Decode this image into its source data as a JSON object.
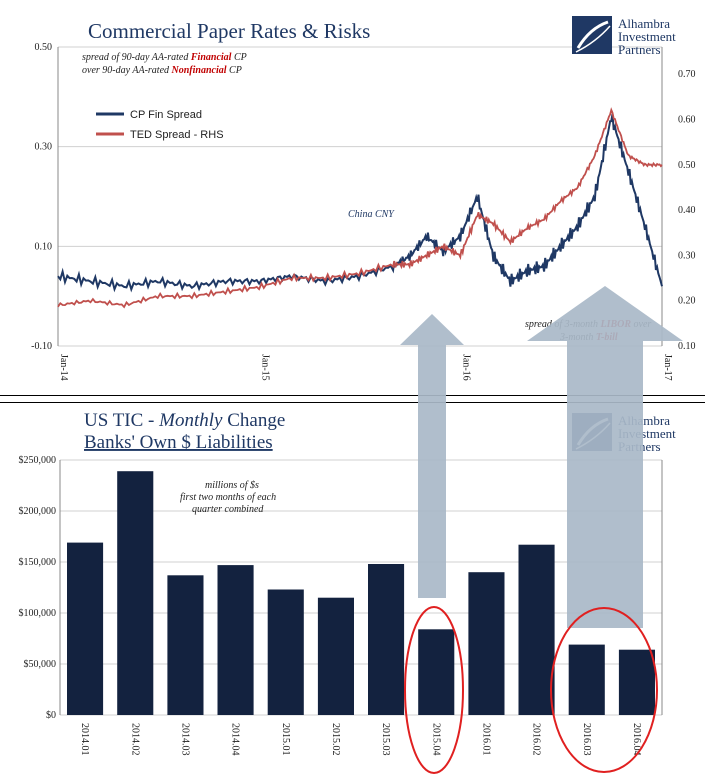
{
  "logo": {
    "lines": [
      "Alhambra",
      "Investment",
      "Partners"
    ],
    "color": "#1f3864"
  },
  "chart_data": [
    {
      "type": "line",
      "title": "Commercial Paper Rates & Risks",
      "subtitle_parts": {
        "line1_pre": "spread of 90-day AA-rated ",
        "line1_red": "Financial",
        "line1_post": " CP",
        "line2_pre": "over 90-day AA-rated ",
        "line2_red": "Nonfinancial",
        "line2_post": " CP"
      },
      "x_tick_labels": [
        "Jan-14",
        "Jan-15",
        "Jan-16",
        "Jan-17"
      ],
      "y_left": {
        "ticks": [
          "-0.10",
          "0.10",
          "0.30",
          "0.50"
        ],
        "ylim": [
          -0.1,
          0.5
        ]
      },
      "y_right": {
        "ticks": [
          "0.10",
          "0.20",
          "0.30",
          "0.40",
          "0.50",
          "0.60",
          "0.70"
        ],
        "ylim": [
          0.1,
          0.76
        ]
      },
      "series": [
        {
          "name": "CP Fin Spread",
          "axis": "left",
          "color": "#1f3864",
          "points": [
            [
              "2014-01",
              0.04
            ],
            [
              "2014-03",
              0.03
            ],
            [
              "2014-05",
              0.02
            ],
            [
              "2014-07",
              0.03
            ],
            [
              "2014-09",
              0.02
            ],
            [
              "2014-11",
              0.03
            ],
            [
              "2015-01",
              0.03
            ],
            [
              "2015-03",
              0.04
            ],
            [
              "2015-05",
              0.03
            ],
            [
              "2015-07",
              0.04
            ],
            [
              "2015-09",
              0.06
            ],
            [
              "2015-10",
              0.08
            ],
            [
              "2015-11",
              0.12
            ],
            [
              "2015-12",
              0.09
            ],
            [
              "2016-01",
              0.12
            ],
            [
              "2016-02",
              0.2
            ],
            [
              "2016-03",
              0.08
            ],
            [
              "2016-04",
              0.03
            ],
            [
              "2016-05",
              0.05
            ],
            [
              "2016-06",
              0.06
            ],
            [
              "2016-07",
              0.1
            ],
            [
              "2016-08",
              0.14
            ],
            [
              "2016-09",
              0.2
            ],
            [
              "2016-10",
              0.36
            ],
            [
              "2016-11",
              0.25
            ],
            [
              "2016-12",
              0.14
            ],
            [
              "2017-01",
              0.02
            ]
          ]
        },
        {
          "name": "TED Spread - RHS",
          "axis": "right",
          "color": "#c0504d",
          "points": [
            [
              "2014-01",
              0.19
            ],
            [
              "2014-03",
              0.2
            ],
            [
              "2014-05",
              0.19
            ],
            [
              "2014-07",
              0.21
            ],
            [
              "2014-09",
              0.21
            ],
            [
              "2014-11",
              0.22
            ],
            [
              "2015-01",
              0.23
            ],
            [
              "2015-03",
              0.25
            ],
            [
              "2015-05",
              0.25
            ],
            [
              "2015-07",
              0.26
            ],
            [
              "2015-09",
              0.28
            ],
            [
              "2015-10",
              0.28
            ],
            [
              "2015-11",
              0.3
            ],
            [
              "2015-12",
              0.32
            ],
            [
              "2016-01",
              0.3
            ],
            [
              "2016-02",
              0.39
            ],
            [
              "2016-03",
              0.37
            ],
            [
              "2016-04",
              0.33
            ],
            [
              "2016-05",
              0.36
            ],
            [
              "2016-06",
              0.38
            ],
            [
              "2016-07",
              0.42
            ],
            [
              "2016-08",
              0.45
            ],
            [
              "2016-09",
              0.52
            ],
            [
              "2016-10",
              0.62
            ],
            [
              "2016-11",
              0.52
            ],
            [
              "2016-12",
              0.5
            ],
            [
              "2017-01",
              0.5
            ]
          ]
        }
      ],
      "annotations": {
        "china": "China CNY",
        "libor_pre": "spread of 3-month ",
        "libor_red": "LIBOR",
        "libor_post": " over",
        "tbill_pre": "3-month ",
        "tbill_red": "T-bill"
      },
      "grid": true,
      "legend_position": "top-left"
    },
    {
      "type": "bar",
      "title_line1_pre": "US TIC - ",
      "title_line1_italic": "Monthly",
      "title_line1_post": " Change",
      "title_line2": "Banks' Own $ Liabilities",
      "note_lines": [
        "millions of $s",
        "first two months of each",
        "quarter combined"
      ],
      "categories": [
        "2014.01",
        "2014.02",
        "2014.03",
        "2014.04",
        "2015.01",
        "2015.02",
        "2015.03",
        "2015.04",
        "2016.01",
        "2016.02",
        "2016.03",
        "2016.04"
      ],
      "values": [
        169000,
        239000,
        137000,
        147000,
        123000,
        115000,
        148000,
        84000,
        140000,
        167000,
        69000,
        64000
      ],
      "y_ticks": [
        "$0",
        "$50,000",
        "$100,000",
        "$150,000",
        "$200,000",
        "$250,000"
      ],
      "ylim": [
        0,
        250000
      ],
      "bar_color": "#13223f",
      "highlight_color": "#e02020",
      "grid": true
    }
  ]
}
